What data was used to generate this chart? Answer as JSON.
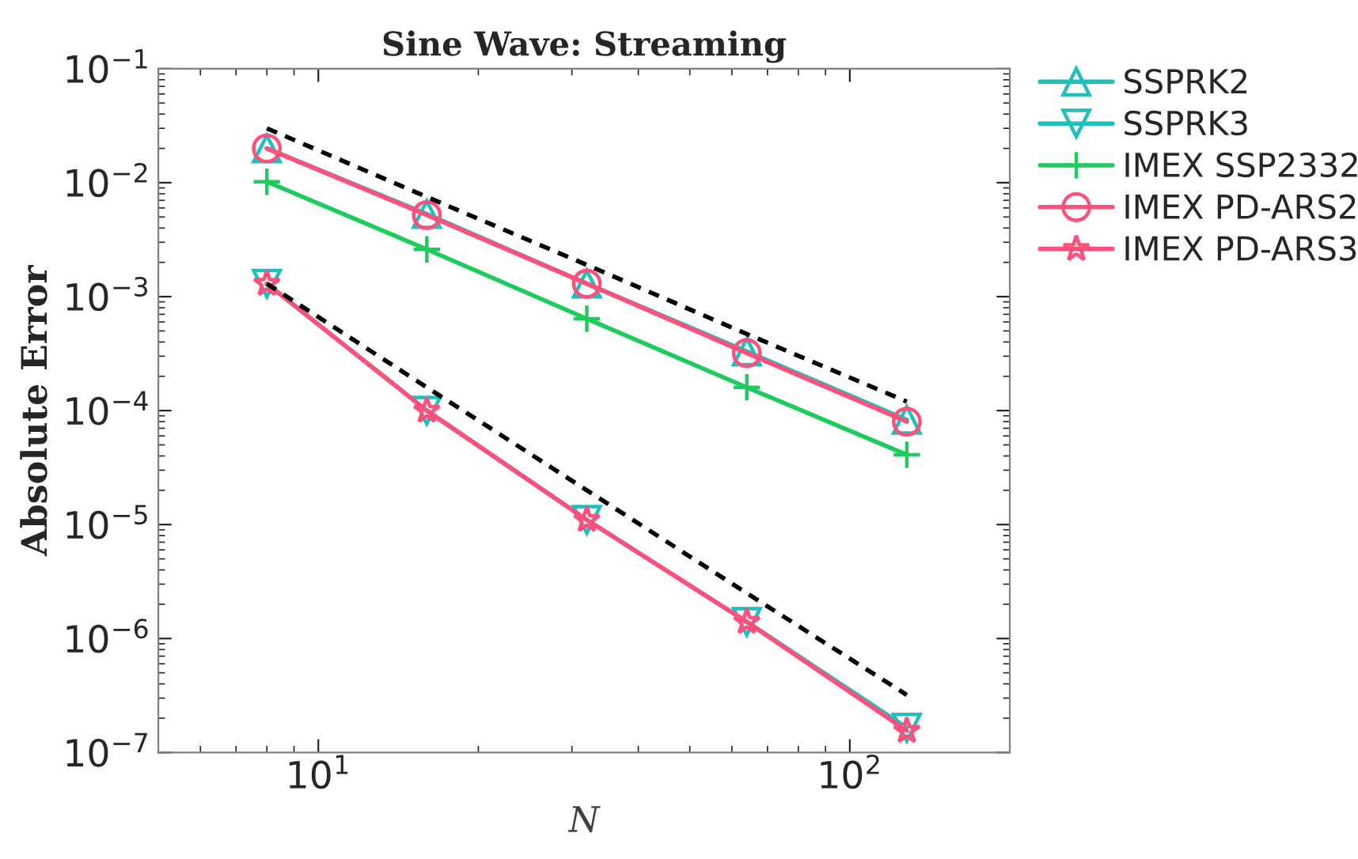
{
  "chart_data": {
    "type": "line",
    "title": "Sine Wave: Streaming",
    "xlabel": "N",
    "ylabel": "Absolute Error",
    "x": [
      8,
      16,
      32,
      64,
      128
    ],
    "series": [
      {
        "name": "SSPRK2",
        "color": "#1fbfbf",
        "marker": "triangle",
        "values": [
          0.02,
          0.0053,
          0.0013,
          0.00033,
          8.3e-05
        ]
      },
      {
        "name": "SSPRK3",
        "color": "#1fbfbf",
        "marker": "triangle_down",
        "values": [
          0.0013,
          0.0001,
          1.1e-05,
          1.4e-06,
          1.65e-07
        ]
      },
      {
        "name": "IMEX SSP2332",
        "color": "#1ecc5e",
        "marker": "cross",
        "values": [
          0.0102,
          0.0026,
          0.00064,
          0.00016,
          4.1e-05
        ]
      },
      {
        "name": "IMEX PD-ARS2",
        "color": "#ff4f7b",
        "marker": "circle",
        "values": [
          0.02,
          0.0052,
          0.0013,
          0.00032,
          8e-05
        ]
      },
      {
        "name": "IMEX PD-ARS3",
        "color": "#ff4f7b",
        "marker": "star",
        "values": [
          0.0013,
          0.0001,
          1.1e-05,
          1.4e-06,
          1.55e-07
        ]
      },
      {
        "color": "#000000",
        "marker": "none",
        "line_style": "dashed",
        "values": [
          0.03,
          0.0075,
          0.0019,
          0.00047,
          0.00012
        ]
      },
      {
        "color": "#000000",
        "marker": "none",
        "line_style": "dashed",
        "values": [
          0.0013,
          0.00016,
          2e-05,
          2.5e-06,
          3.2e-07
        ]
      }
    ],
    "log": "xy",
    "xlim": [
      5,
      200
    ],
    "ylim": [
      1e-07,
      0.1
    ],
    "xticks": [
      {
        "value": 10,
        "label": "10$^{1}$"
      },
      {
        "value": 100,
        "label": "10$^{2}$"
      }
    ],
    "yticks": [
      {
        "value": 1e-07,
        "label": "10$^{−7}$"
      },
      {
        "value": 1e-06,
        "label": "10$^{−6}$"
      },
      {
        "value": 1e-05,
        "label": "10$^{−5}$"
      },
      {
        "value": 0.0001,
        "label": "10$^{−4}$"
      },
      {
        "value": 0.001,
        "label": "10$^{−3}$"
      },
      {
        "value": 0.01,
        "label": "10$^{−2}$"
      },
      {
        "value": 0.1,
        "label": "10$^{−1}$"
      }
    ],
    "grid": false,
    "legend": "top right"
  }
}
